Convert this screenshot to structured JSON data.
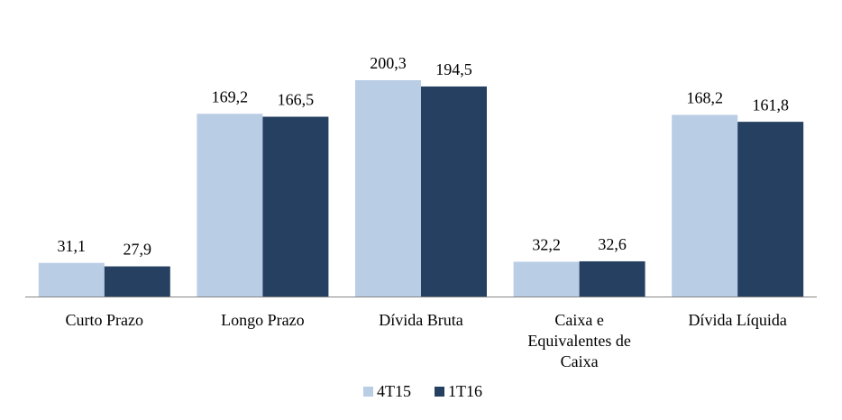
{
  "chart_data": {
    "type": "bar",
    "categories": [
      "Curto Prazo",
      "Longo Prazo",
      "Dívida Bruta",
      "Caixa e Equivalentes de Caixa",
      "Dívida Líquida"
    ],
    "series": [
      {
        "name": "4T15",
        "color": "#b9cde5",
        "values": [
          31.1,
          169.2,
          200.3,
          32.2,
          168.2
        ],
        "value_labels": [
          "31,1",
          "169,2",
          "200,3",
          "32,2",
          "168,2"
        ]
      },
      {
        "name": "1T16",
        "color": "#254061",
        "values": [
          27.9,
          166.5,
          194.5,
          32.6,
          161.8
        ],
        "value_labels": [
          "27,9",
          "166,5",
          "194,5",
          "32,6",
          "161,8"
        ]
      }
    ],
    "legend": "bottom"
  }
}
